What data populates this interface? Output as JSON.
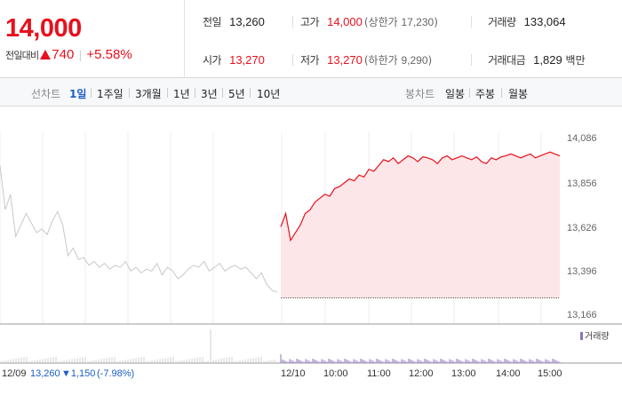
{
  "quote": {
    "price": "14,000",
    "change_label": "전일대비",
    "change_value": "740",
    "change_percent": "+5.58%"
  },
  "stats": {
    "prev_close_label": "전일",
    "prev_close": "13,260",
    "high_label": "고가",
    "high": "14,000",
    "upper_limit_label": "상한가",
    "upper_limit": "17,230",
    "volume_label": "거래량",
    "volume": "133,064",
    "open_label": "시가",
    "open": "13,270",
    "low_label": "저가",
    "low": "13,270",
    "lower_limit_label": "하한가",
    "lower_limit": "9,290",
    "value_label": "거래대금",
    "value": "1,829",
    "value_unit": "백만"
  },
  "toolbar": {
    "line_chart_label": "선차트",
    "periods": [
      "1일",
      "1주일",
      "3개월",
      "1년",
      "3년",
      "5년",
      "10년"
    ],
    "active_period": "1일",
    "candle_chart_label": "봉차트",
    "candle_periods": [
      "일봉",
      "주봉",
      "월봉"
    ]
  },
  "colors": {
    "up": "#e8101d",
    "active": "#1a5dc8",
    "prev_line": "#c8c8c8",
    "volume": "#8d72c0"
  },
  "chart_data": {
    "type": "line",
    "y_ticks": [
      "14,086",
      "13,856",
      "13,626",
      "13,396",
      "13,166"
    ],
    "ylim": [
      13166,
      14086
    ],
    "x_ticks": [
      "12/10",
      "10:00",
      "11:00",
      "12:00",
      "13:00",
      "14:00",
      "15:00"
    ],
    "legend": "거래량",
    "prev_day": {
      "date": "12/09",
      "close": "13,260",
      "change": "▼1,150",
      "change_percent": "(-7.98%)"
    },
    "prev_day_series": [
      13950,
      13720,
      13800,
      13580,
      13640,
      13700,
      13650,
      13600,
      13620,
      13590,
      13660,
      13710,
      13640,
      13480,
      13520,
      13460,
      13470,
      13430,
      13450,
      13420,
      13440,
      13410,
      13430,
      13420,
      13450,
      13400,
      13420,
      13390,
      13410,
      13400,
      13440,
      13380,
      13420,
      13400,
      13360,
      13380,
      13410,
      13430,
      13420,
      13450,
      13400,
      13420,
      13440,
      13400,
      13420,
      13430,
      13410,
      13420,
      13390,
      13360,
      13390,
      13330,
      13300,
      13290
    ],
    "today_series": [
      13630,
      13700,
      13560,
      13600,
      13640,
      13700,
      13720,
      13760,
      13780,
      13800,
      13790,
      13830,
      13840,
      13860,
      13880,
      13870,
      13900,
      13890,
      13930,
      13920,
      13950,
      13980,
      13970,
      13990,
      13960,
      13980,
      14000,
      13990,
      13970,
      13995,
      13990,
      13980,
      13960,
      13990,
      14000,
      13980,
      13990,
      14000,
      13990,
      13980,
      13995,
      13970,
      13960,
      13990,
      13980,
      13995,
      14000,
      14010,
      14000,
      13990,
      14000,
      14010,
      13990,
      14000,
      14010,
      14020,
      14010,
      14000
    ]
  }
}
